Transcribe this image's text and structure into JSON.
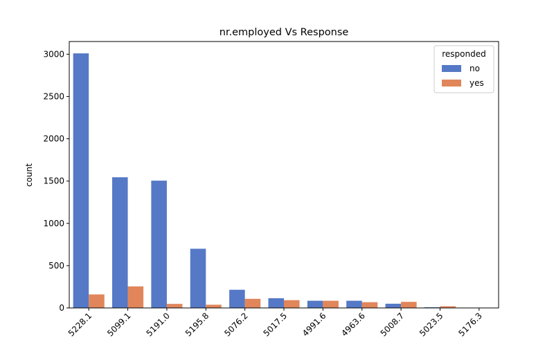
{
  "chart_data": {
    "type": "bar",
    "title": "nr.employed Vs Response",
    "xlabel": "",
    "ylabel": "count",
    "ylim": [
      0,
      3150
    ],
    "yticks": [
      0,
      500,
      1000,
      1500,
      2000,
      2500,
      3000
    ],
    "categories": [
      "5228.1",
      "5099.1",
      "5191.0",
      "5195.8",
      "5076.2",
      "5017.5",
      "4991.6",
      "4963.6",
      "5008.7",
      "5023.5",
      "5176.3"
    ],
    "legend": {
      "title": "responded",
      "position": "top-right"
    },
    "series": [
      {
        "name": "no",
        "color": "#5579c6",
        "values": [
          3010,
          1545,
          1505,
          700,
          215,
          115,
          85,
          85,
          50,
          8,
          1
        ]
      },
      {
        "name": "yes",
        "color": "#e1865b",
        "values": [
          160,
          255,
          48,
          38,
          108,
          92,
          85,
          68,
          72,
          20,
          0
        ]
      }
    ],
    "grid": false
  }
}
